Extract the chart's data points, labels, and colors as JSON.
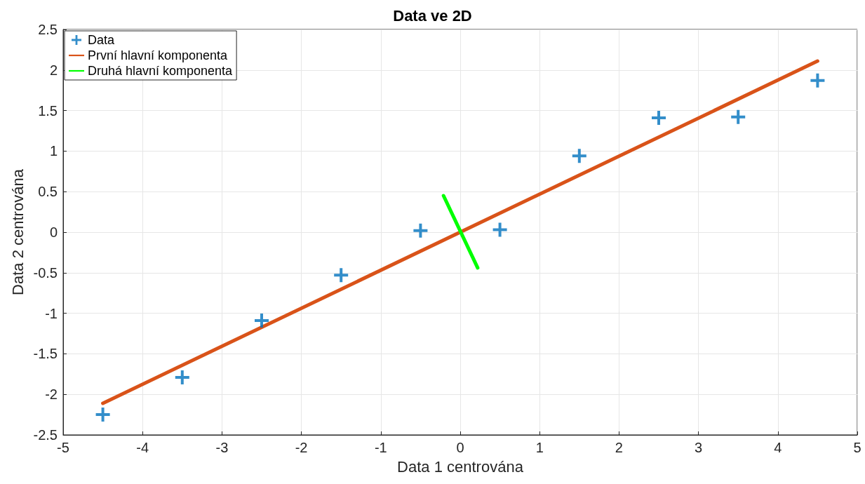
{
  "chart_data": {
    "type": "scatter",
    "title": "Data ve 2D",
    "xlabel": "Data 1 centrována",
    "ylabel": "Data 2 centrována",
    "xlim": [
      -5,
      5
    ],
    "xticks": [
      -5,
      -4,
      -3,
      -2,
      -1,
      0,
      1,
      2,
      3,
      4,
      5
    ],
    "ylim": [
      -2.5,
      2.5
    ],
    "yticks": [
      -2.5,
      -2,
      -1.5,
      -1,
      -0.5,
      0,
      0.5,
      1,
      1.5,
      2,
      2.5
    ],
    "grid": true,
    "legend": "top left",
    "series": [
      {
        "name": "Data",
        "marker": "cross",
        "color": "#0072bd",
        "x": [
          -4.5,
          -3.5,
          -2.5,
          -1.5,
          -0.5,
          0.5,
          1.5,
          2.5,
          3.5,
          4.5
        ],
        "values": [
          -2.25,
          -1.79,
          -1.09,
          -0.53,
          0.02,
          0.03,
          0.94,
          1.41,
          1.42,
          1.87
        ]
      },
      {
        "name": "První hlavní komponenta",
        "type": "line",
        "marker": "none",
        "line_style": "solid",
        "color": "#d95319",
        "x": [
          -4.5,
          4.5
        ],
        "values": [
          -2.11,
          2.11
        ]
      },
      {
        "name": "Druhá hlavní komponenta",
        "type": "line",
        "marker": "none",
        "line_style": "solid",
        "color": "#00ff00",
        "x": [
          -0.21,
          0.22
        ],
        "values": [
          0.45,
          -0.44
        ]
      }
    ]
  }
}
